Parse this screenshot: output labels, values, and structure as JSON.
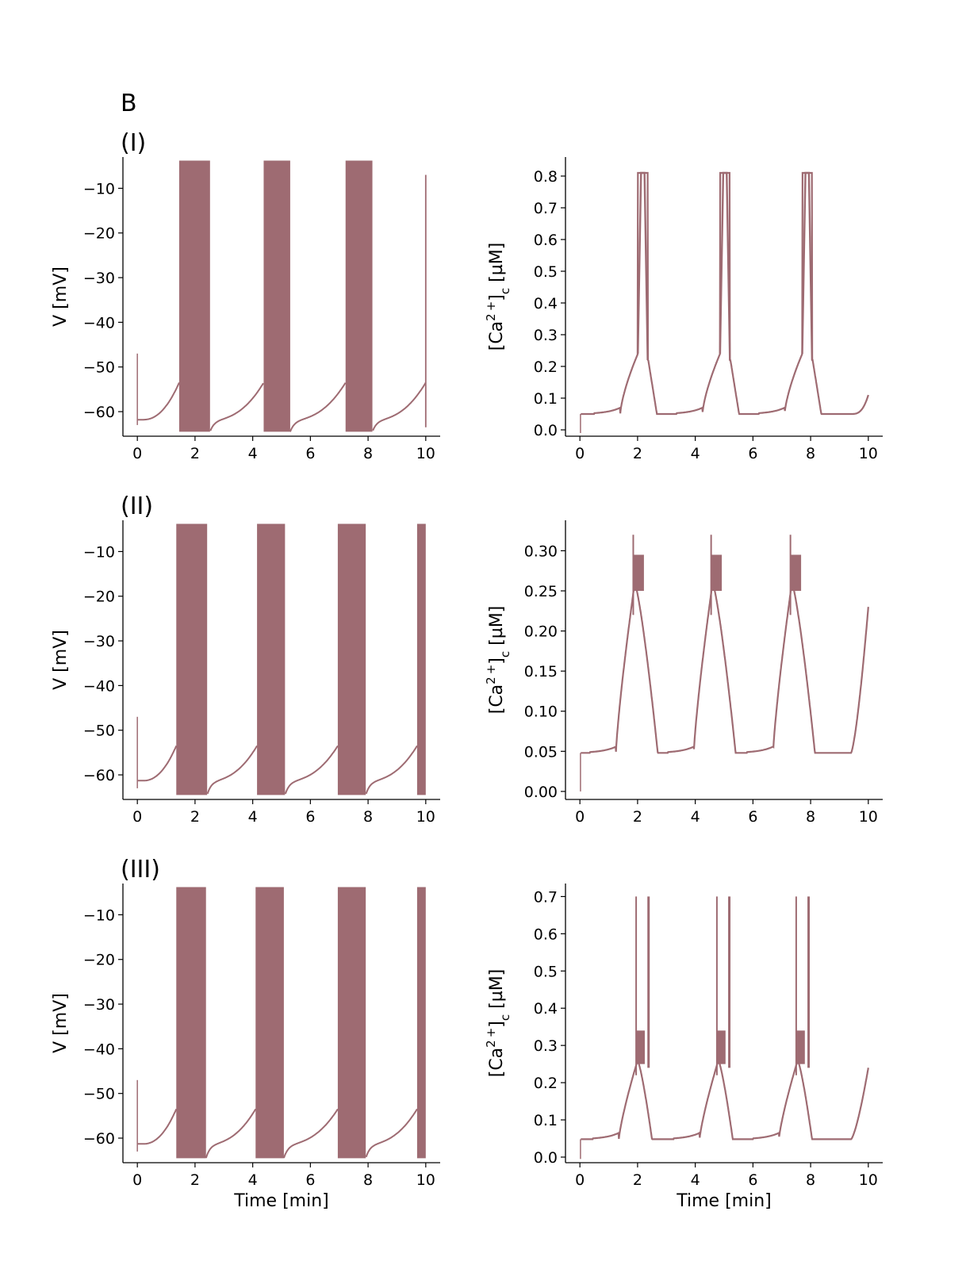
{
  "figure": {
    "panel_label": "B",
    "row_labels": [
      "(I)",
      "(II)",
      "(III)"
    ],
    "trace_color": "#9e6b72"
  },
  "chart_data": [
    {
      "type": "line",
      "row": "(I)",
      "xlabel": "",
      "ylabel": "V [mV]",
      "xlim": [
        -0.5,
        10.5
      ],
      "ylim": [
        -65.5,
        -3
      ],
      "xticks": [
        0,
        2,
        4,
        6,
        8,
        10
      ],
      "yticks": [
        -60,
        -50,
        -40,
        -30,
        -20,
        -10
      ],
      "bursts": [
        [
          1.45,
          2.52
        ],
        [
          4.38,
          5.3
        ],
        [
          7.22,
          8.15
        ]
      ],
      "spike_top": -3.8,
      "spike_bottom": -64.5,
      "silent_min": -61.8,
      "pre_burst_threshold": -53.5
    },
    {
      "type": "line",
      "row": "(I)",
      "xlabel": "",
      "ylabel": "[Ca2+]c [µM]",
      "xlim": [
        -0.5,
        10.5
      ],
      "ylim": [
        -0.02,
        0.86
      ],
      "xticks": [
        0,
        2,
        4,
        6,
        8,
        10
      ],
      "yticks": [
        0.0,
        0.1,
        0.2,
        0.3,
        0.4,
        0.5,
        0.6,
        0.7,
        0.8
      ],
      "baseline": 0.05,
      "peaks": [
        {
          "t": 2.15,
          "value": 0.81
        },
        {
          "t": 5.0,
          "value": 0.81
        },
        {
          "t": 7.85,
          "value": 0.81
        }
      ],
      "end_value": 0.11
    },
    {
      "type": "line",
      "row": "(II)",
      "xlabel": "",
      "ylabel": "V [mV]",
      "xlim": [
        -0.5,
        10.5
      ],
      "ylim": [
        -65.5,
        -3
      ],
      "xticks": [
        0,
        2,
        4,
        6,
        8,
        10
      ],
      "yticks": [
        -60,
        -50,
        -40,
        -30,
        -20,
        -10
      ],
      "bursts": [
        [
          1.35,
          2.42
        ],
        [
          4.15,
          5.12
        ],
        [
          6.95,
          7.92
        ],
        [
          9.7,
          10.0
        ]
      ],
      "spike_top": -3.8,
      "spike_bottom": -64.5,
      "silent_min": -61.3,
      "pre_burst_threshold": -53.5
    },
    {
      "type": "line",
      "row": "(II)",
      "xlabel": "",
      "ylabel": "[Ca2+]c [µM]",
      "xlim": [
        -0.5,
        10.5
      ],
      "ylim": [
        -0.01,
        0.338
      ],
      "xticks": [
        0,
        2,
        4,
        6,
        8,
        10
      ],
      "yticks": [
        0.0,
        0.05,
        0.1,
        0.15,
        0.2,
        0.25,
        0.3
      ],
      "baseline": 0.048,
      "peaks": [
        {
          "t": 1.9,
          "value": 0.32
        },
        {
          "t": 4.6,
          "value": 0.32
        },
        {
          "t": 7.35,
          "value": 0.32
        }
      ],
      "plateau": [
        0.25,
        0.295
      ],
      "end_value": 0.23
    },
    {
      "type": "line",
      "row": "(III)",
      "xlabel": "Time [min]",
      "ylabel": "V [mV]",
      "xlim": [
        -0.5,
        10.5
      ],
      "ylim": [
        -65.5,
        -3
      ],
      "xticks": [
        0,
        2,
        4,
        6,
        8,
        10
      ],
      "yticks": [
        -60,
        -50,
        -40,
        -30,
        -20,
        -10
      ],
      "bursts": [
        [
          1.35,
          2.38
        ],
        [
          4.1,
          5.08
        ],
        [
          6.95,
          7.92
        ],
        [
          9.7,
          10.0
        ]
      ],
      "spike_top": -3.8,
      "spike_bottom": -64.5,
      "silent_min": -61.3,
      "pre_burst_threshold": -53.5
    },
    {
      "type": "line",
      "row": "(III)",
      "xlabel": "Time [min]",
      "ylabel": "[Ca2+]c [µM]",
      "xlim": [
        -0.5,
        10.5
      ],
      "ylim": [
        -0.015,
        0.735
      ],
      "xticks": [
        0,
        2,
        4,
        6,
        8,
        10
      ],
      "yticks": [
        0.0,
        0.1,
        0.2,
        0.3,
        0.4,
        0.5,
        0.6,
        0.7
      ],
      "baseline": 0.048,
      "peaks": [
        {
          "t": 2.0,
          "value": 0.7
        },
        {
          "t": 4.8,
          "value": 0.7
        },
        {
          "t": 7.55,
          "value": 0.7
        }
      ],
      "plateau": [
        0.25,
        0.34
      ],
      "end_value": 0.24
    }
  ]
}
